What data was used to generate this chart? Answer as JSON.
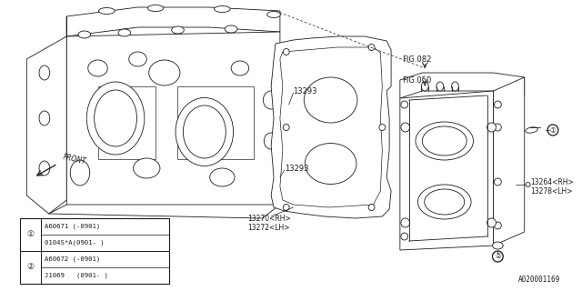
{
  "bg_color": "#ffffff",
  "line_color": "#1a1a1a",
  "fig_width": 6.4,
  "fig_height": 3.2,
  "dpi": 100,
  "watermark": "A020001169",
  "labels": {
    "fig082": "FIG.082",
    "fig050": "FIG.050",
    "part13293_top": "13293",
    "part13293_bot": "13293",
    "part13270": "13270<RH>",
    "part13272": "13272<LH>",
    "part13264": "13264<RH>",
    "part13278": "13278<LH>"
  },
  "table_rows": [
    {
      "sym": "①",
      "line1": "A60671 (-0901)",
      "line2": "0104S*A(0901- )"
    },
    {
      "sym": "②",
      "line1": "A60672 (-0901)",
      "line2": "J1069   (0901- )"
    }
  ],
  "front_label": "FRONT"
}
